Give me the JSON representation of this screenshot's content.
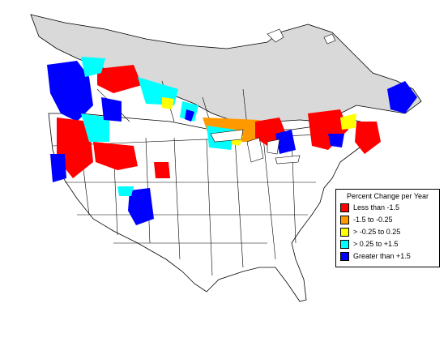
{
  "map": {
    "land_color": "#ffffff",
    "outside_range_color": "#d9d9d9",
    "boundary_color": "#000000"
  },
  "legend": {
    "title": "Percent Change per Year",
    "items": [
      {
        "label": "Less than -1.5",
        "color": "#ff0000"
      },
      {
        "label": "-1.5 to -0.25",
        "color": "#ff9900"
      },
      {
        "label": "> -0.25 to 0.25",
        "color": "#ffff00"
      },
      {
        "label": "> 0.25 to +1.5",
        "color": "#00ffff"
      },
      {
        "label": "Greater than +1.5",
        "color": "#0000ff"
      }
    ]
  }
}
